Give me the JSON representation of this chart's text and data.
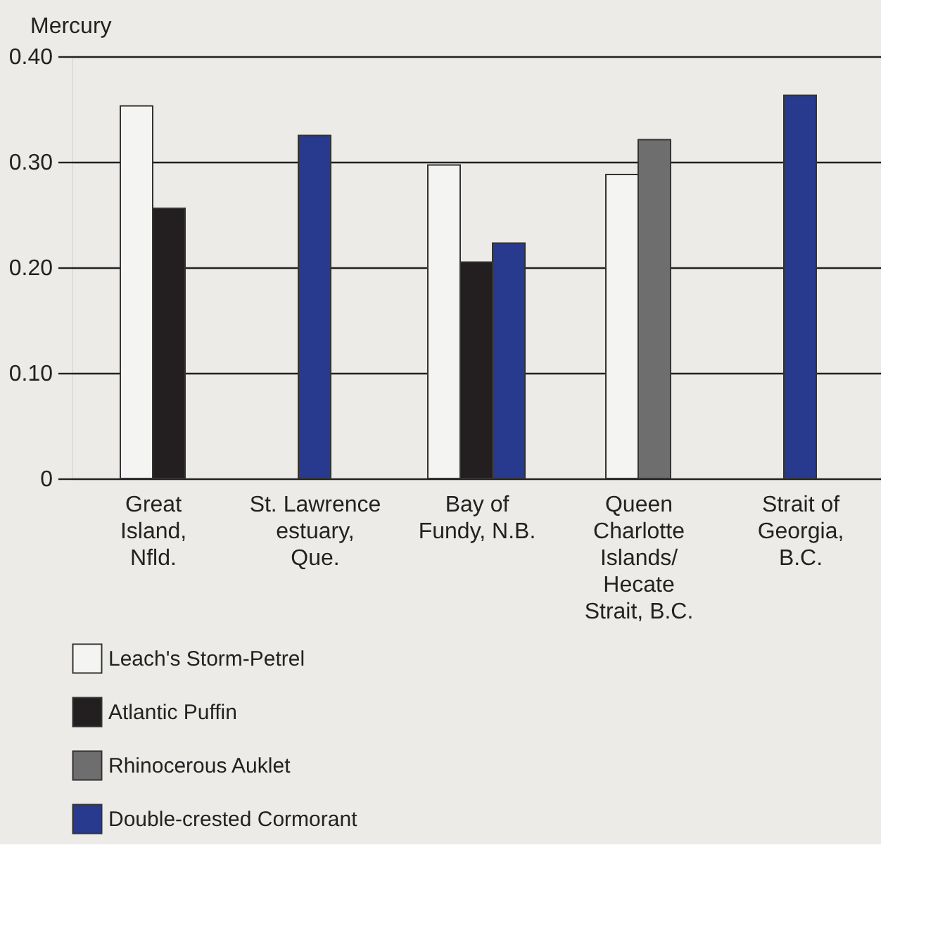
{
  "chart_data": {
    "type": "bar",
    "ylabel": "Mercury",
    "categories": [
      "Great Island, Nfld.",
      "St. Lawrence estuary, Que.",
      "Bay of Fundy, N.B.",
      "Queen Charlotte Islands/ Hecate Strait, B.C.",
      "Strait of Georgia, B.C."
    ],
    "series": [
      {
        "name": "Leach's Storm-Petrel",
        "color": "#f4f4f2",
        "values": [
          0.353,
          null,
          0.297,
          0.288,
          null
        ]
      },
      {
        "name": "Atlantic Puffin",
        "color": "#231f20",
        "values": [
          0.256,
          null,
          0.205,
          null,
          null
        ]
      },
      {
        "name": "Rhinocerous Auklet",
        "color": "#6e6e6e",
        "values": [
          null,
          null,
          null,
          0.321,
          null
        ]
      },
      {
        "name": "Double-crested Cormorant",
        "color": "#283a8e",
        "values": [
          null,
          0.325,
          0.223,
          null,
          0.363
        ]
      }
    ],
    "ylim": [
      0,
      0.4
    ],
    "yticks": [
      {
        "value": 0,
        "label": "0"
      },
      {
        "value": 0.1,
        "label": "0.10"
      },
      {
        "value": 0.2,
        "label": "0.20"
      },
      {
        "value": 0.3,
        "label": "0.30"
      },
      {
        "value": 0.4,
        "label": "0.40"
      }
    ],
    "grid": "y",
    "legend": "bottom left"
  }
}
